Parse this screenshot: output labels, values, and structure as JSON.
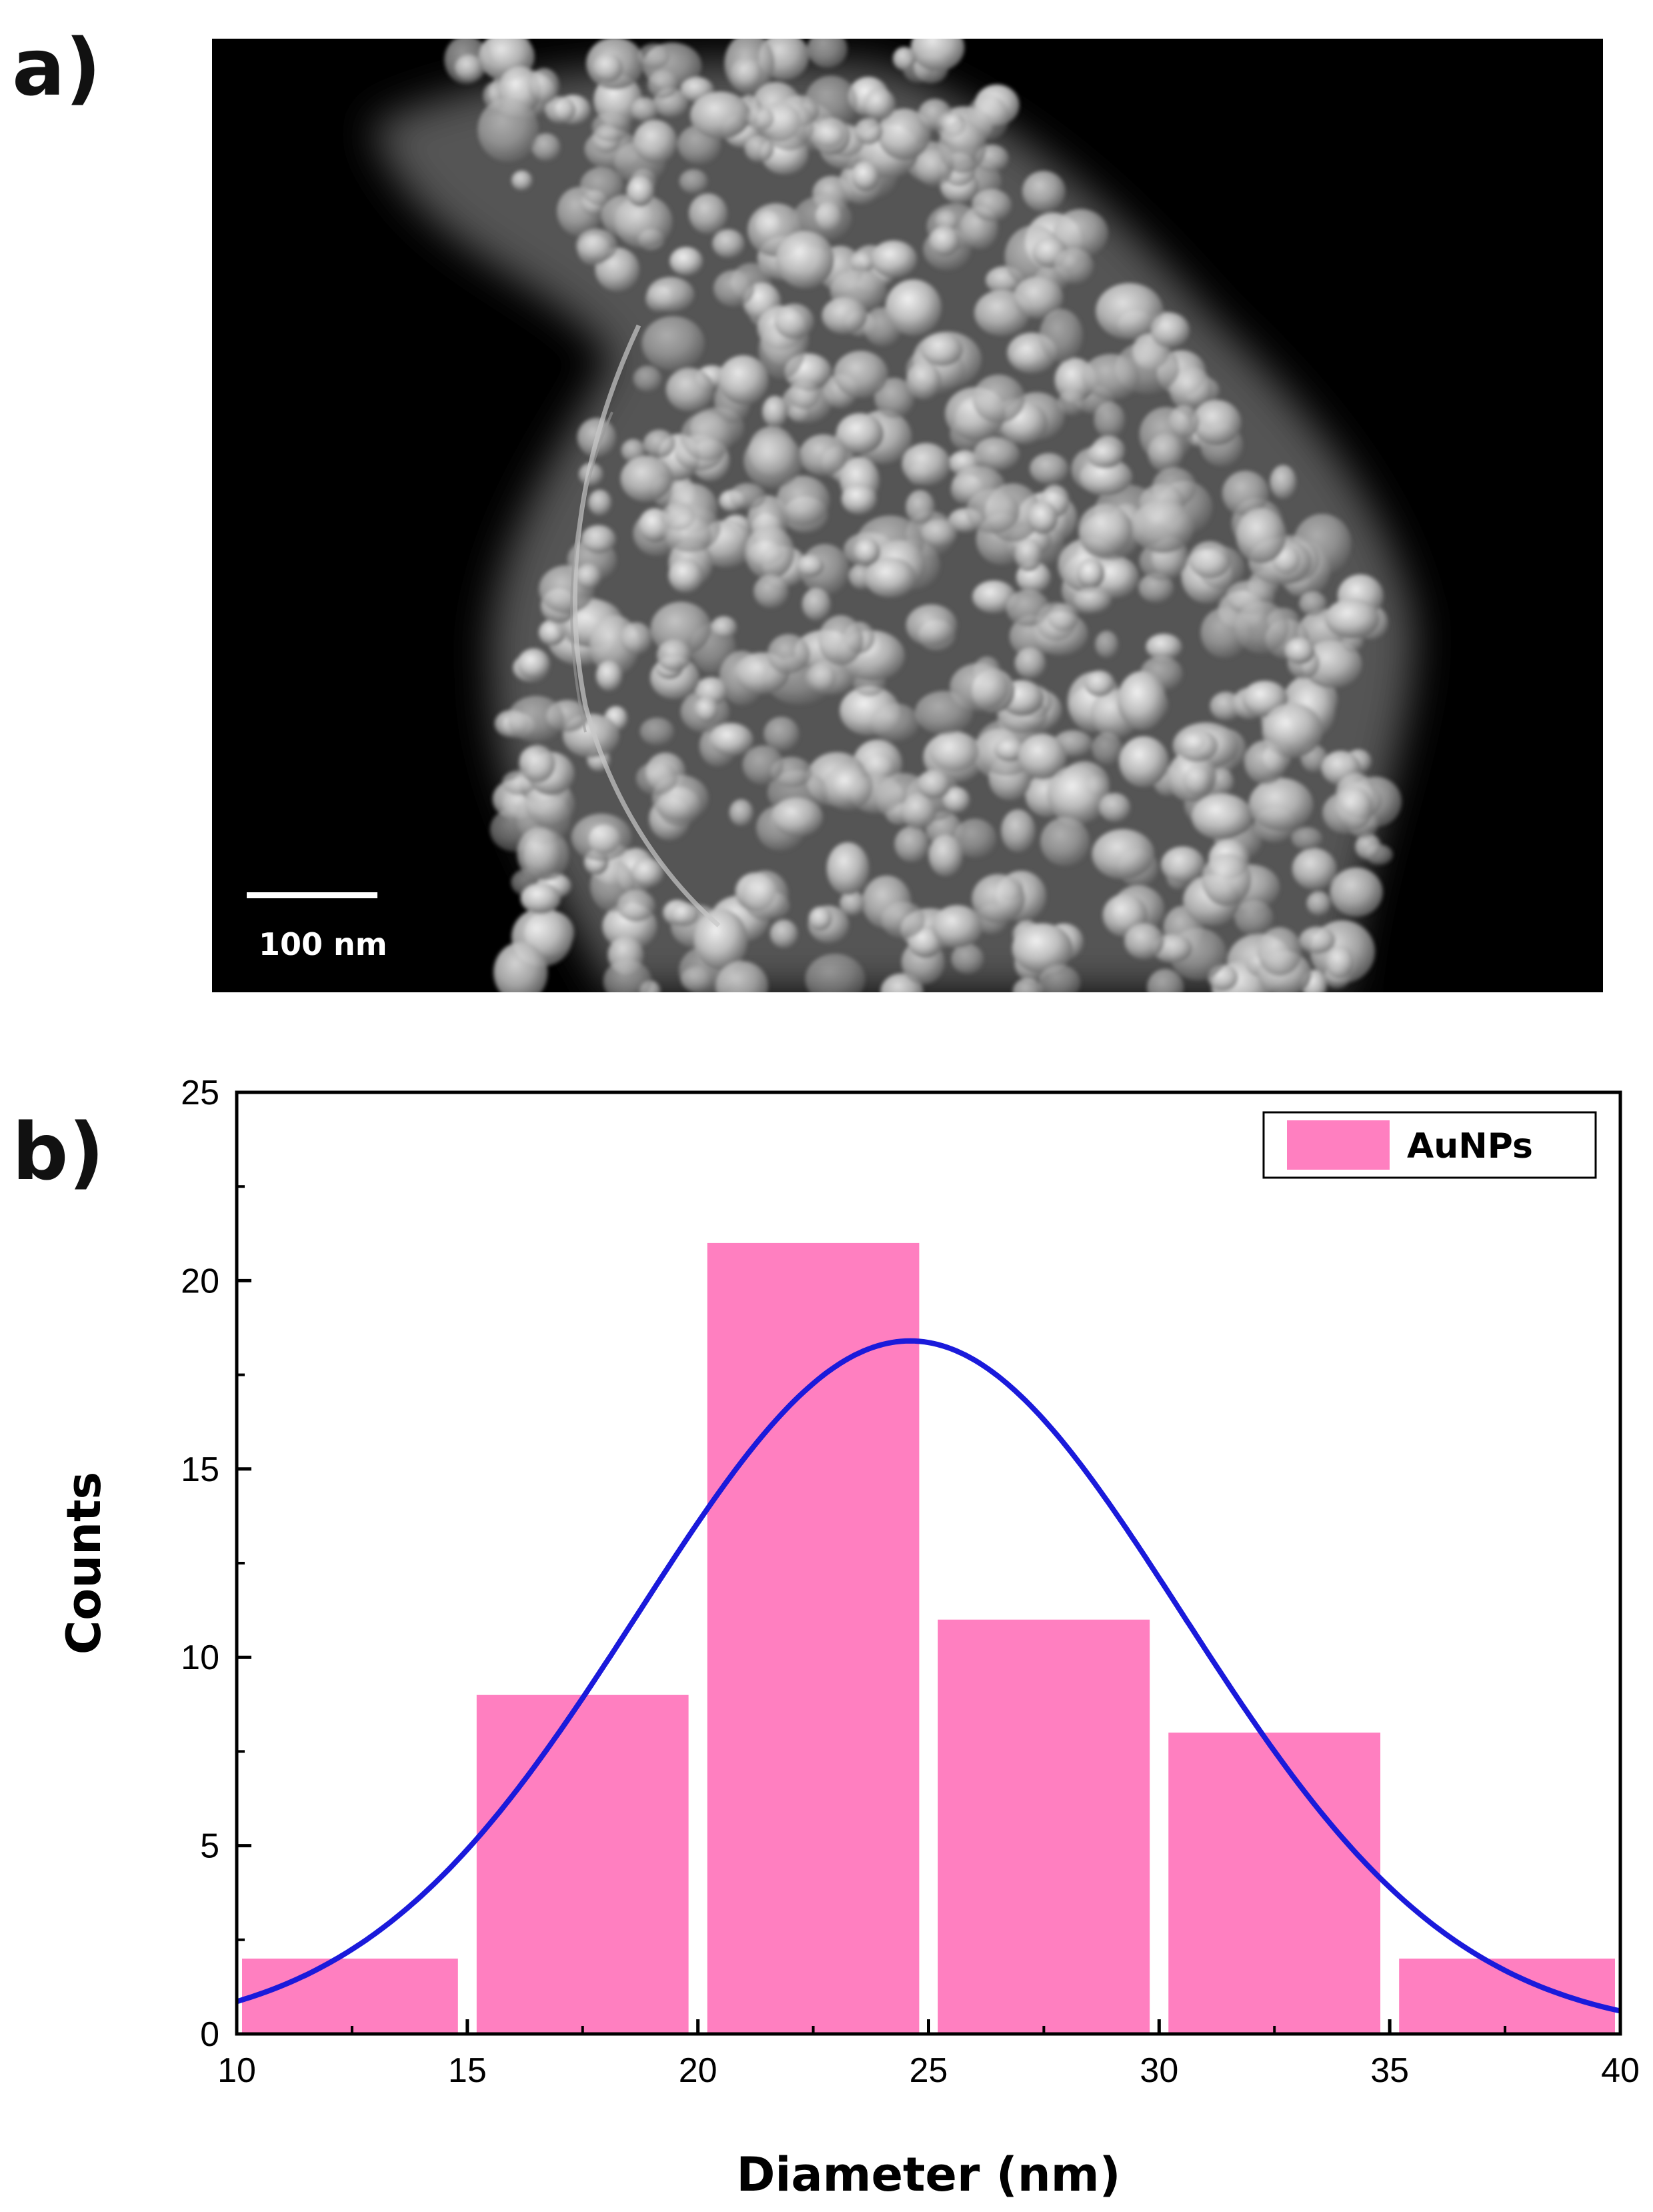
{
  "panel_a": {
    "label": "a)",
    "scale_bar_label": "100 nm"
  },
  "panel_b": {
    "label": "b)"
  },
  "colors": {
    "bar_fill": "#ff7fc0",
    "fit_line": "#1a1adb",
    "axis": "#000000"
  },
  "chart_data": {
    "type": "bar",
    "xlabel": "Diameter (nm)",
    "ylabel": "Counts",
    "xlim": [
      10,
      40
    ],
    "ylim": [
      0,
      25
    ],
    "xticks": [
      10,
      15,
      20,
      25,
      30,
      35,
      40
    ],
    "yticks": [
      0,
      5,
      10,
      15,
      20,
      25
    ],
    "legend": {
      "position": "top-right",
      "entries": [
        "AuNPs"
      ]
    },
    "series": [
      {
        "name": "AuNPs",
        "bins": [
          [
            10,
            15
          ],
          [
            15,
            20
          ],
          [
            20,
            25
          ],
          [
            25,
            30
          ],
          [
            30,
            35
          ],
          [
            35,
            40
          ]
        ],
        "values": [
          2,
          9,
          21,
          11,
          8,
          2
        ]
      }
    ],
    "fit_curve": {
      "type": "gaussian",
      "peak_x": 24.6,
      "peak_y": 18.4,
      "sigma": 5.9
    }
  }
}
